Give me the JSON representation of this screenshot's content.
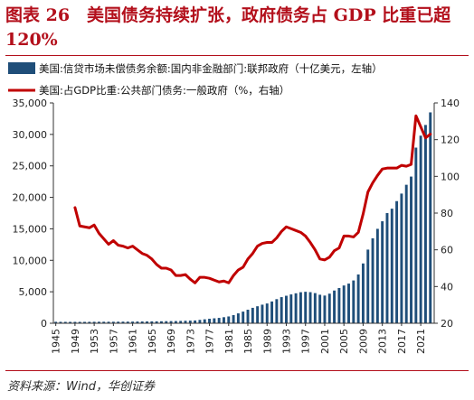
{
  "title": "图表 26　美国债务持续扩张，政府债务占 GDP 比重已超 120%",
  "source": "资料来源：Wind，华创证券",
  "colors": {
    "bar": "#1f4e79",
    "line": "#c00000",
    "title": "#b30f1b"
  },
  "chart_data": {
    "type": "bar+line",
    "legend_position": "top-left",
    "grid": false,
    "x_tick_labels": [
      "1945",
      "1949",
      "1953",
      "1957",
      "1961",
      "1965",
      "1969",
      "1973",
      "1977",
      "1981",
      "1985",
      "1989",
      "1993",
      "1997",
      "2001",
      "2005",
      "2009",
      "2013",
      "2017",
      "2021"
    ],
    "y_left": {
      "ylim": [
        0,
        35000
      ],
      "ticks": [
        0,
        5000,
        10000,
        15000,
        20000,
        25000,
        30000,
        35000
      ]
    },
    "y_right": {
      "ylim": [
        20,
        140
      ],
      "ticks": [
        20,
        40,
        60,
        80,
        100,
        120,
        140
      ]
    },
    "series": [
      {
        "name": "美国:信贷市场未偿债务余额:国内非金融部门:联邦政府（十亿美元，左轴）",
        "type": "bar",
        "axis": "left",
        "x": [
          1945,
          1946,
          1947,
          1948,
          1949,
          1950,
          1951,
          1952,
          1953,
          1954,
          1955,
          1956,
          1957,
          1958,
          1959,
          1960,
          1961,
          1962,
          1963,
          1964,
          1965,
          1966,
          1967,
          1968,
          1969,
          1970,
          1971,
          1972,
          1973,
          1974,
          1975,
          1976,
          1977,
          1978,
          1979,
          1980,
          1981,
          1982,
          1983,
          1984,
          1985,
          1986,
          1987,
          1988,
          1989,
          1990,
          1991,
          1992,
          1993,
          1994,
          1995,
          1996,
          1997,
          1998,
          1999,
          2000,
          2001,
          2002,
          2003,
          2004,
          2005,
          2006,
          2007,
          2008,
          2009,
          2010,
          2011,
          2012,
          2013,
          2014,
          2015,
          2016,
          2017,
          2018,
          2019,
          2020,
          2021,
          2022,
          2023
        ],
        "values": [
          230,
          225,
          221,
          218,
          220,
          219,
          219,
          225,
          232,
          237,
          240,
          238,
          239,
          246,
          254,
          256,
          261,
          272,
          279,
          287,
          295,
          303,
          313,
          332,
          341,
          350,
          371,
          397,
          420,
          445,
          535,
          625,
          712,
          784,
          851,
          960,
          1080,
          1290,
          1570,
          1850,
          2150,
          2450,
          2700,
          2950,
          3140,
          3460,
          3830,
          4150,
          4370,
          4580,
          4760,
          4930,
          5000,
          4940,
          4790,
          4530,
          4400,
          4700,
          5200,
          5600,
          6000,
          6300,
          6800,
          7750,
          9500,
          11700,
          13500,
          15000,
          16200,
          17500,
          18200,
          19400,
          20600,
          22000,
          23300,
          27900,
          29800,
          31500,
          33500
        ]
      },
      {
        "name": "美国:占GDP比重:公共部门债务:一般政府（%，右轴）",
        "type": "line",
        "axis": "right",
        "x": [
          1949,
          1950,
          1951,
          1952,
          1953,
          1954,
          1955,
          1956,
          1957,
          1958,
          1959,
          1960,
          1961,
          1962,
          1963,
          1964,
          1965,
          1966,
          1967,
          1968,
          1969,
          1970,
          1971,
          1972,
          1973,
          1974,
          1975,
          1976,
          1977,
          1978,
          1979,
          1980,
          1981,
          1982,
          1983,
          1984,
          1985,
          1986,
          1987,
          1988,
          1989,
          1990,
          1991,
          1992,
          1993,
          1994,
          1995,
          1996,
          1997,
          1998,
          1999,
          2000,
          2001,
          2002,
          2003,
          2004,
          2005,
          2006,
          2007,
          2008,
          2009,
          2010,
          2011,
          2012,
          2013,
          2014,
          2015,
          2016,
          2017,
          2018,
          2019,
          2020,
          2021,
          2022,
          2023
        ],
        "values": [
          83,
          73,
          72.5,
          72,
          73.5,
          69,
          66,
          63,
          65,
          62.5,
          62,
          61,
          62,
          60,
          58,
          57,
          55,
          52,
          50,
          50,
          49,
          46,
          46,
          46.5,
          44,
          42,
          45,
          45,
          44.5,
          43.5,
          42.5,
          43,
          42,
          46,
          49,
          50.5,
          55,
          58,
          62,
          63.5,
          64,
          64,
          66.5,
          70,
          72.5,
          71.5,
          70.5,
          69.5,
          67.5,
          64,
          60,
          55,
          54.5,
          56,
          59.5,
          61,
          67.5,
          67.5,
          67,
          69.5,
          79.5,
          91.5,
          96.5,
          100.5,
          104,
          104.5,
          104.5,
          104.5,
          106,
          105.5,
          106.5,
          133,
          127,
          121,
          123
        ]
      }
    ]
  }
}
